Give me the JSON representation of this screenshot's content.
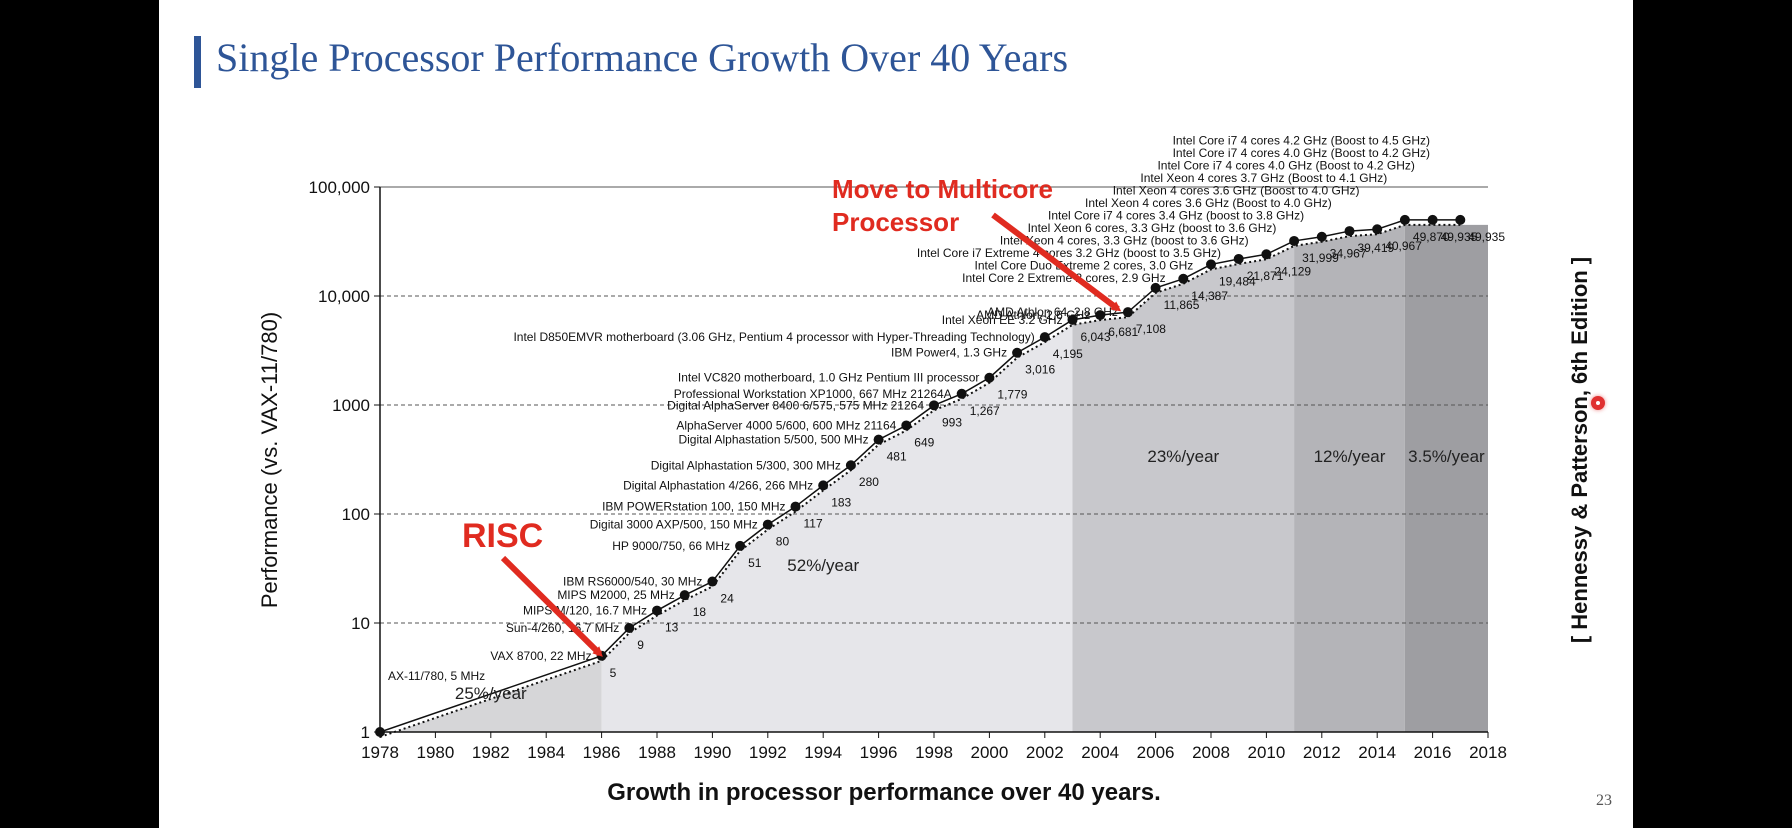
{
  "slide": {
    "title": "Single Processor Performance Growth Over 40 Years",
    "page_number": "23",
    "citation": "[ Hennessy & Patterson, 6th Edition ]",
    "annotations": {
      "risc": "RISC",
      "multicore_line1": "Move to Multicore",
      "multicore_line2": "Processor"
    }
  },
  "chart_data": {
    "type": "line",
    "scale": "log",
    "xlabel": "Growth in processor performance over 40 years.",
    "ylabel": "Performance (vs. VAX-11/780)",
    "xlim": [
      1978,
      2018
    ],
    "ylim": [
      1,
      100000
    ],
    "x_ticks": [
      "1978",
      "1980",
      "1982",
      "1984",
      "1986",
      "1988",
      "1990",
      "1992",
      "1994",
      "1996",
      "1998",
      "2000",
      "2002",
      "2004",
      "2006",
      "2008",
      "2010",
      "2012",
      "2014",
      "2016",
      "2018"
    ],
    "y_ticks": [
      "1",
      "10",
      "100",
      "1000",
      "10,000",
      "100,000"
    ],
    "regions": [
      {
        "from": 1978,
        "to": 1986,
        "rate": "25%/year",
        "color": "#d6d6d8"
      },
      {
        "from": 1986,
        "to": 2003,
        "rate": "52%/year",
        "color": "#e6e6ea"
      },
      {
        "from": 2003,
        "to": 2011,
        "rate": "23%/year",
        "color": "#c8c8cc"
      },
      {
        "from": 2011,
        "to": 2015,
        "rate": "12%/year",
        "color": "#b4b4b8"
      },
      {
        "from": 2015,
        "to": 2018,
        "rate": "3.5%/year",
        "color": "#9e9ea2"
      }
    ],
    "points": [
      {
        "x": 1978,
        "y": 1,
        "label": "AX-11/780, 5 MHz",
        "value": ""
      },
      {
        "x": 1986,
        "y": 5,
        "label": "VAX 8700, 22 MHz",
        "value": "5"
      },
      {
        "x": 1987,
        "y": 9,
        "label": "Sun-4/260, 16.7 MHz",
        "value": "9"
      },
      {
        "x": 1988,
        "y": 13,
        "label": "MIPS M/120, 16.7 MHz",
        "value": "13"
      },
      {
        "x": 1989,
        "y": 18,
        "label": "MIPS M2000, 25 MHz",
        "value": "18"
      },
      {
        "x": 1990,
        "y": 24,
        "label": "IBM RS6000/540, 30 MHz",
        "value": "24"
      },
      {
        "x": 1991,
        "y": 51,
        "label": "HP 9000/750, 66 MHz",
        "value": "51"
      },
      {
        "x": 1992,
        "y": 80,
        "label": "Digital 3000 AXP/500, 150 MHz",
        "value": "80"
      },
      {
        "x": 1993,
        "y": 117,
        "label": "IBM POWERstation 100, 150 MHz",
        "value": "117"
      },
      {
        "x": 1994,
        "y": 183,
        "label": "Digital Alphastation 4/266, 266 MHz",
        "value": "183"
      },
      {
        "x": 1995,
        "y": 280,
        "label": "Digital Alphastation 5/300, 300 MHz",
        "value": "280"
      },
      {
        "x": 1996,
        "y": 481,
        "label": "Digital Alphastation 5/500, 500 MHz",
        "value": "481"
      },
      {
        "x": 1997,
        "y": 649,
        "label": "AlphaServer 4000 5/600, 600 MHz 21164",
        "value": "649"
      },
      {
        "x": 1998,
        "y": 993,
        "label": "Digital AlphaServer 8400 6/575, 575 MHz 21264",
        "value": "993"
      },
      {
        "x": 1999,
        "y": 1267,
        "label": "Professional Workstation XP1000, 667 MHz 21264A",
        "value": "1,267"
      },
      {
        "x": 2000,
        "y": 1779,
        "label": "Intel VC820 motherboard, 1.0 GHz Pentium III processor",
        "value": "1,779"
      },
      {
        "x": 2001,
        "y": 3016,
        "label": "IBM Power4, 1.3 GHz",
        "value": "3,016"
      },
      {
        "x": 2002,
        "y": 4195,
        "label": "Intel D850EMVR motherboard (3.06 GHz, Pentium 4 processor with Hyper-Threading Technology)",
        "value": "4,195"
      },
      {
        "x": 2003,
        "y": 6043,
        "label": "Intel Xeon EE 3.2 GHz",
        "value": "6,043"
      },
      {
        "x": 2004,
        "y": 6681,
        "label": "AMD Athlon, 2.6 GHz",
        "value": "6,681"
      },
      {
        "x": 2005,
        "y": 7108,
        "label": "AMD Athlon 64, 2.8 GHz",
        "value": "7,108"
      },
      {
        "x": 2006,
        "y": 11865,
        "label": "Intel Core 2 Extreme 2 cores, 2.9 GHz",
        "value": "11,865"
      },
      {
        "x": 2007,
        "y": 14387,
        "label": "Intel Core Duo Extreme 2 cores, 3.0 GHz",
        "value": "14,387"
      },
      {
        "x": 2008,
        "y": 19484,
        "label": "Intel Core i7 Extreme 4 cores 3.2 GHz (boost to 3.5 GHz)",
        "value": "19,484"
      },
      {
        "x": 2009,
        "y": 21871,
        "label": "Intel Xeon 4 cores, 3.3 GHz (boost to 3.6 GHz)",
        "value": "21,871"
      },
      {
        "x": 2010,
        "y": 24129,
        "label": "Intel Xeon 6 cores, 3.3 GHz (boost to 3.6 GHz)",
        "value": "24,129"
      },
      {
        "x": 2011,
        "y": 31999,
        "label": "Intel Core i7 4 cores 3.4 GHz (boost to 3.8 GHz)",
        "value": "31,999"
      },
      {
        "x": 2012,
        "y": 34967,
        "label": "Intel Xeon 4 cores 3.6 GHz (Boost to 4.0 GHz)",
        "value": "34,967"
      },
      {
        "x": 2013,
        "y": 39419,
        "label": "Intel Xeon 4 cores 3.6 GHz (Boost to 4.0 GHz)",
        "value": "39,419"
      },
      {
        "x": 2014,
        "y": 40967,
        "label": "Intel Xeon 4 cores 3.7 GHz (Boost to 4.1 GHz)",
        "value": "40,967"
      },
      {
        "x": 2015,
        "y": 49870,
        "label": "Intel Core i7 4 cores 4.0 GHz (Boost to 4.2 GHz)",
        "value": "49,870"
      },
      {
        "x": 2016,
        "y": 49935,
        "label": "Intel Core i7 4 cores 4.0 GHz (Boost to 4.2 GHz)",
        "value": "49,935"
      },
      {
        "x": 2017,
        "y": 49935,
        "label": "Intel Core i7 4 cores 4.2 GHz (Boost to 4.5 GHz)",
        "value": "49,935"
      }
    ]
  }
}
